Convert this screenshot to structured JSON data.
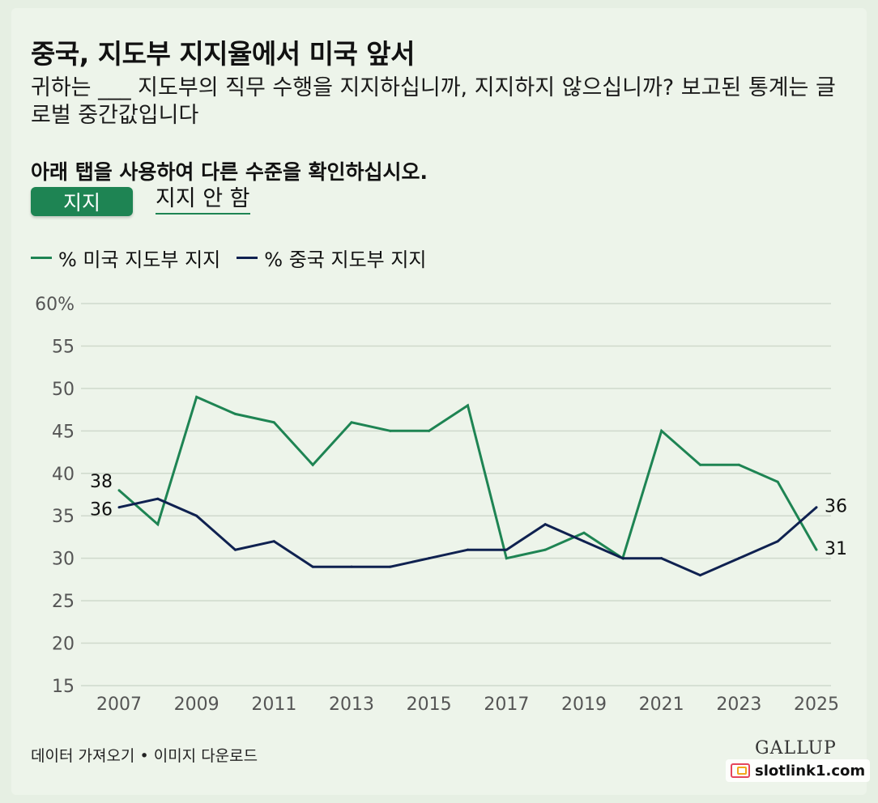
{
  "title": "중국, 지도부 지지율에서 미국 앞서",
  "subtitle": "귀하는 ___ 지도부의 직무 수행을 지지하십니까, 지지하지 않으십니까? 보고된 통계는 글로벌 중간값입니다",
  "tabs": {
    "instruction": "아래 탭을 사용하여 다른 수준을 확인하십시오.",
    "items": [
      {
        "label": "지지",
        "active": true
      },
      {
        "label": "지지 안 함",
        "active": false
      }
    ]
  },
  "footer": {
    "data_link": "데이터 가져오기",
    "separator": "•",
    "image_link": "이미지 다운로드"
  },
  "logo": "GALLUP",
  "watermark": "slotlink1.com",
  "chart_data": {
    "type": "line",
    "x": [
      2007,
      2008,
      2009,
      2010,
      2011,
      2012,
      2013,
      2014,
      2015,
      2016,
      2017,
      2018,
      2019,
      2020,
      2021,
      2022,
      2023,
      2024,
      2025
    ],
    "series": [
      {
        "name": "% 미국 지도부 지지",
        "color": "#1e8453",
        "values": [
          38,
          34,
          49,
          47,
          46,
          41,
          46,
          45,
          45,
          48,
          30,
          31,
          33,
          30,
          45,
          41,
          41,
          39,
          31
        ]
      },
      {
        "name": "% 중국 지도부 지지",
        "color": "#0f2150",
        "values": [
          36,
          37,
          35,
          31,
          32,
          29,
          29,
          29,
          30,
          31,
          31,
          34,
          32,
          30,
          30,
          28,
          30,
          32,
          36
        ]
      }
    ],
    "ylim": [
      15,
      60
    ],
    "yticks": [
      "15",
      "20",
      "25",
      "30",
      "35",
      "40",
      "45",
      "50",
      "55",
      "60%"
    ],
    "ytick_values": [
      15,
      20,
      25,
      30,
      35,
      40,
      45,
      50,
      55,
      60
    ],
    "xticks": [
      "2007",
      "2009",
      "2011",
      "2013",
      "2015",
      "2017",
      "2019",
      "2021",
      "2023",
      "2025"
    ],
    "xtick_values": [
      2007,
      2009,
      2011,
      2013,
      2015,
      2017,
      2019,
      2021,
      2023,
      2025
    ],
    "end_labels": {
      "start": [
        "38",
        "36"
      ],
      "end": [
        "36",
        "31"
      ]
    },
    "grid": true,
    "legend_position": "top-left"
  }
}
